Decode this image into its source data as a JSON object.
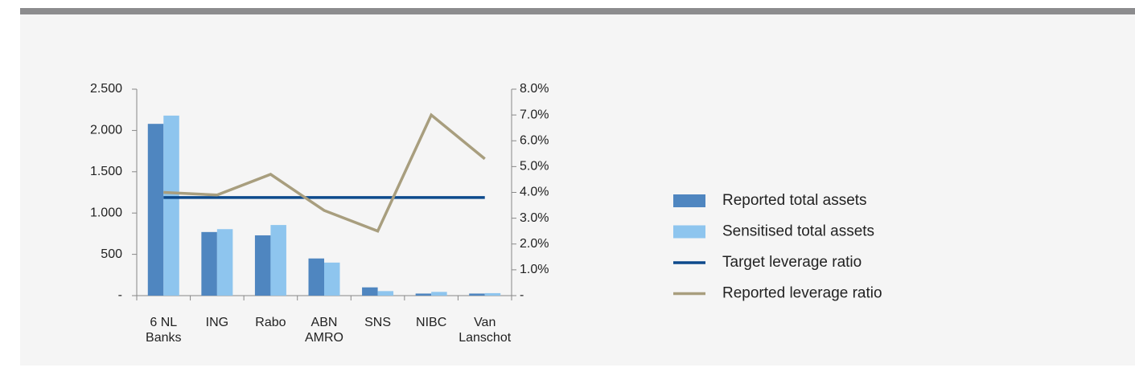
{
  "chart_data": {
    "type": "bar",
    "categories": [
      "6 NL\nBanks",
      "ING",
      "Rabo",
      "ABN\nAMRO",
      "SNS",
      "NIBC",
      "Van\nLanschot"
    ],
    "series": [
      {
        "name": "Reported total assets",
        "color": "#4f86c0",
        "values": [
          2080,
          770,
          730,
          450,
          100,
          25,
          25
        ]
      },
      {
        "name": "Sensitised total assets",
        "color": "#8ec5ee",
        "values": [
          2180,
          805,
          855,
          400,
          55,
          45,
          30
        ]
      },
      {
        "name": "Target leverage ratio",
        "color": "#0d4a8c",
        "type": "line",
        "axis": "y2",
        "values": [
          3.8,
          3.8,
          3.8,
          3.8,
          3.8,
          3.8,
          3.8
        ]
      },
      {
        "name": "Reported leverage ratio",
        "color": "#a89e7e",
        "type": "line",
        "axis": "y2",
        "values": [
          4.0,
          3.9,
          4.7,
          3.3,
          2.5,
          7.0,
          5.3
        ]
      }
    ],
    "ylim": [
      0,
      2500
    ],
    "yticks": [
      {
        "value": 0,
        "label": "-"
      },
      500,
      {
        "value": 1000,
        "label": "1.000"
      },
      {
        "value": 1500,
        "label": "1.500"
      },
      {
        "value": 2000,
        "label": "2.000"
      },
      {
        "value": 2500,
        "label": "2.500"
      }
    ],
    "y2lim": [
      0,
      8
    ],
    "y2ticks": [
      {
        "value": 0,
        "label": "-"
      },
      {
        "value": 1,
        "label": "1.0%"
      },
      {
        "value": 2,
        "label": "2.0%"
      },
      {
        "value": 3,
        "label": "3.0%"
      },
      {
        "value": 4,
        "label": "4.0%"
      },
      {
        "value": 5,
        "label": "5.0%"
      },
      {
        "value": 6,
        "label": "6.0%"
      },
      {
        "value": 7,
        "label": "7.0%"
      },
      {
        "value": 8,
        "label": "8.0%"
      }
    ],
    "legend": "right"
  }
}
